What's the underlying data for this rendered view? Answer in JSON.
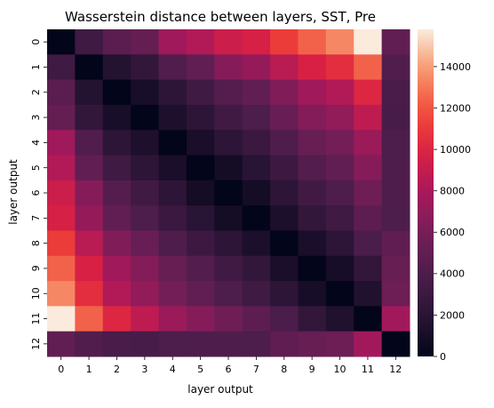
{
  "chart_data": {
    "type": "heatmap",
    "title": "Wasserstein distance between layers, SST, Pre",
    "xlabel": "layer output",
    "ylabel": "layer output",
    "x_categories": [
      "0",
      "1",
      "2",
      "3",
      "4",
      "5",
      "6",
      "7",
      "8",
      "9",
      "10",
      "11",
      "12"
    ],
    "y_categories": [
      "0",
      "1",
      "2",
      "3",
      "4",
      "5",
      "6",
      "7",
      "8",
      "9",
      "10",
      "11",
      "12"
    ],
    "values": [
      [
        0,
        3200,
        4700,
        5100,
        7600,
        8300,
        9300,
        9700,
        11200,
        12400,
        13400,
        15800,
        5000
      ],
      [
        3200,
        0,
        1700,
        2500,
        4200,
        5000,
        6600,
        7200,
        8600,
        9800,
        10500,
        12400,
        4200
      ],
      [
        4700,
        1700,
        0,
        1100,
        2200,
        3200,
        4400,
        5000,
        6400,
        7600,
        8300,
        10100,
        3800
      ],
      [
        5100,
        2500,
        1100,
        0,
        1400,
        2200,
        3300,
        4000,
        5300,
        6500,
        7100,
        8800,
        3700
      ],
      [
        7600,
        4200,
        2200,
        1400,
        0,
        1200,
        2200,
        2900,
        4100,
        5200,
        5900,
        7400,
        4000
      ],
      [
        8300,
        5000,
        3200,
        2200,
        1200,
        0,
        900,
        1900,
        3100,
        4300,
        5000,
        6600,
        4100
      ],
      [
        9300,
        6600,
        4400,
        3300,
        2200,
        900,
        0,
        900,
        2200,
        3300,
        4000,
        5600,
        4100
      ],
      [
        9700,
        7200,
        5000,
        4000,
        2900,
        1900,
        900,
        0,
        1300,
        2500,
        3200,
        4800,
        4000
      ],
      [
        11200,
        8600,
        6400,
        5300,
        4100,
        3100,
        2200,
        1300,
        0,
        1200,
        2100,
        3900,
        4900
      ],
      [
        12400,
        9800,
        7600,
        6500,
        5200,
        4300,
        3300,
        2500,
        1200,
        0,
        1000,
        2500,
        5200
      ],
      [
        13400,
        10500,
        8300,
        7100,
        5900,
        5000,
        4000,
        3200,
        2100,
        1000,
        0,
        1500,
        5500
      ],
      [
        15800,
        12400,
        10100,
        8800,
        7400,
        6600,
        5600,
        4800,
        3900,
        2500,
        1500,
        0,
        7700
      ],
      [
        5000,
        4200,
        3800,
        3700,
        4000,
        4100,
        4100,
        4000,
        4900,
        5200,
        5500,
        7700,
        0
      ]
    ],
    "vmin": 0,
    "vmax": 15800,
    "colormap": "rocket",
    "colorbar_ticks": [
      0,
      2000,
      4000,
      6000,
      8000,
      10000,
      12000,
      14000
    ],
    "colorbar_tick_labels": [
      "0",
      "2000",
      "4000",
      "6000",
      "8000",
      "10000",
      "12000",
      "14000"
    ],
    "grid": false,
    "legend": "colorbar-right"
  }
}
